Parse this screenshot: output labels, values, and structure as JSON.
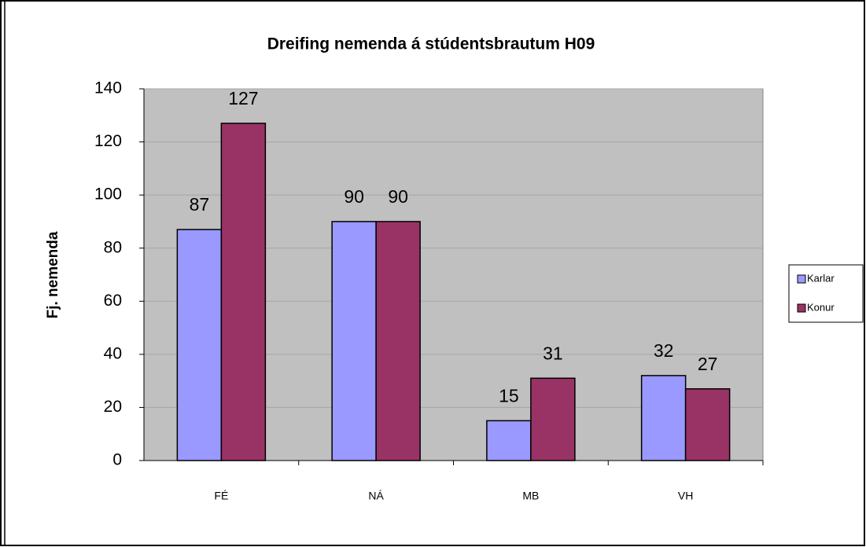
{
  "chart_data": {
    "type": "bar",
    "title": "Dreifing nemenda á stúdentsbrautum  H09",
    "y_label": "Fj. nemenda",
    "categories": [
      "FÉ",
      "NÁ",
      "MB",
      "VH"
    ],
    "series": [
      {
        "name": "Karlar",
        "color": "#9999ff",
        "values": [
          87,
          90,
          15,
          32
        ]
      },
      {
        "name": "Konur",
        "color": "#993366",
        "values": [
          127,
          90,
          31,
          27
        ]
      }
    ],
    "ylim": [
      0,
      140
    ],
    "yticks": [
      0,
      20,
      40,
      60,
      80,
      100,
      120,
      140
    ],
    "grid": true,
    "legend": "right",
    "data_labels": true
  }
}
